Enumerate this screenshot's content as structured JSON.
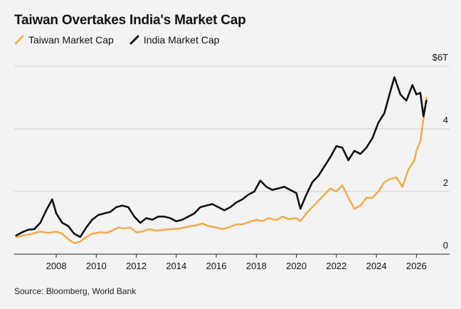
{
  "chart_data": {
    "type": "line",
    "title": "Taiwan Overtakes India's Market Cap",
    "source": "Source: Bloomberg, World Bank",
    "x_ticks": [
      "2008",
      "2010",
      "2012",
      "2014",
      "2016",
      "2018",
      "2020",
      "2022",
      "2024",
      "2026"
    ],
    "y_ticks": [
      "0",
      "2",
      "4",
      "$6T"
    ],
    "ylim": [
      0,
      6
    ],
    "xlim": [
      2005.9,
      2026.7
    ],
    "legend_position": "top-left",
    "grid": "horizontal",
    "series": [
      {
        "name": "Taiwan Market Cap",
        "color": "#f0ad4e",
        "points": [
          [
            2006.0,
            0.55
          ],
          [
            2006.4,
            0.6
          ],
          [
            2006.8,
            0.65
          ],
          [
            2007.2,
            0.72
          ],
          [
            2007.6,
            0.68
          ],
          [
            2008.0,
            0.72
          ],
          [
            2008.3,
            0.65
          ],
          [
            2008.6,
            0.48
          ],
          [
            2008.9,
            0.35
          ],
          [
            2009.2,
            0.4
          ],
          [
            2009.5,
            0.55
          ],
          [
            2009.8,
            0.65
          ],
          [
            2010.2,
            0.7
          ],
          [
            2010.5,
            0.68
          ],
          [
            2010.8,
            0.75
          ],
          [
            2011.1,
            0.85
          ],
          [
            2011.4,
            0.82
          ],
          [
            2011.7,
            0.85
          ],
          [
            2012.0,
            0.7
          ],
          [
            2012.3,
            0.72
          ],
          [
            2012.6,
            0.8
          ],
          [
            2013.0,
            0.75
          ],
          [
            2013.4,
            0.78
          ],
          [
            2013.8,
            0.8
          ],
          [
            2014.2,
            0.82
          ],
          [
            2014.6,
            0.88
          ],
          [
            2015.0,
            0.92
          ],
          [
            2015.3,
            0.98
          ],
          [
            2015.6,
            0.9
          ],
          [
            2016.0,
            0.85
          ],
          [
            2016.3,
            0.8
          ],
          [
            2016.6,
            0.85
          ],
          [
            2017.0,
            0.95
          ],
          [
            2017.3,
            0.95
          ],
          [
            2017.6,
            1.02
          ],
          [
            2018.0,
            1.1
          ],
          [
            2018.3,
            1.05
          ],
          [
            2018.6,
            1.15
          ],
          [
            2019.0,
            1.08
          ],
          [
            2019.3,
            1.2
          ],
          [
            2019.6,
            1.12
          ],
          [
            2020.0,
            1.15
          ],
          [
            2020.2,
            1.05
          ],
          [
            2020.5,
            1.3
          ],
          [
            2020.8,
            1.5
          ],
          [
            2021.1,
            1.7
          ],
          [
            2021.4,
            1.9
          ],
          [
            2021.7,
            2.1
          ],
          [
            2022.0,
            2.0
          ],
          [
            2022.3,
            2.2
          ],
          [
            2022.6,
            1.8
          ],
          [
            2022.9,
            1.45
          ],
          [
            2023.2,
            1.55
          ],
          [
            2023.5,
            1.8
          ],
          [
            2023.8,
            1.8
          ],
          [
            2024.1,
            2.0
          ],
          [
            2024.4,
            2.3
          ],
          [
            2024.7,
            2.4
          ],
          [
            2025.0,
            2.45
          ],
          [
            2025.3,
            2.15
          ],
          [
            2025.6,
            2.7
          ],
          [
            2025.9,
            3.0
          ],
          [
            2026.0,
            3.3
          ],
          [
            2026.2,
            3.6
          ],
          [
            2026.35,
            4.3
          ],
          [
            2026.5,
            5.0
          ]
        ]
      },
      {
        "name": "India Market Cap",
        "color": "#111111",
        "points": [
          [
            2006.0,
            0.6
          ],
          [
            2006.3,
            0.7
          ],
          [
            2006.6,
            0.78
          ],
          [
            2006.9,
            0.8
          ],
          [
            2007.2,
            1.0
          ],
          [
            2007.5,
            1.4
          ],
          [
            2007.8,
            1.75
          ],
          [
            2008.0,
            1.3
          ],
          [
            2008.3,
            1.0
          ],
          [
            2008.6,
            0.9
          ],
          [
            2008.9,
            0.65
          ],
          [
            2009.2,
            0.55
          ],
          [
            2009.5,
            0.85
          ],
          [
            2009.8,
            1.1
          ],
          [
            2010.1,
            1.25
          ],
          [
            2010.4,
            1.3
          ],
          [
            2010.7,
            1.35
          ],
          [
            2011.0,
            1.5
          ],
          [
            2011.3,
            1.55
          ],
          [
            2011.6,
            1.5
          ],
          [
            2011.9,
            1.2
          ],
          [
            2012.2,
            1.0
          ],
          [
            2012.5,
            1.15
          ],
          [
            2012.8,
            1.1
          ],
          [
            2013.1,
            1.2
          ],
          [
            2013.4,
            1.2
          ],
          [
            2013.7,
            1.15
          ],
          [
            2014.0,
            1.05
          ],
          [
            2014.3,
            1.1
          ],
          [
            2014.6,
            1.2
          ],
          [
            2014.9,
            1.3
          ],
          [
            2015.2,
            1.5
          ],
          [
            2015.5,
            1.55
          ],
          [
            2015.8,
            1.6
          ],
          [
            2016.1,
            1.5
          ],
          [
            2016.4,
            1.4
          ],
          [
            2016.7,
            1.5
          ],
          [
            2017.0,
            1.65
          ],
          [
            2017.3,
            1.75
          ],
          [
            2017.6,
            1.9
          ],
          [
            2017.9,
            2.0
          ],
          [
            2018.2,
            2.35
          ],
          [
            2018.5,
            2.15
          ],
          [
            2018.8,
            2.05
          ],
          [
            2019.1,
            2.1
          ],
          [
            2019.4,
            2.15
          ],
          [
            2019.7,
            2.05
          ],
          [
            2020.0,
            1.95
          ],
          [
            2020.2,
            1.45
          ],
          [
            2020.5,
            1.9
          ],
          [
            2020.8,
            2.3
          ],
          [
            2021.1,
            2.5
          ],
          [
            2021.4,
            2.8
          ],
          [
            2021.7,
            3.1
          ],
          [
            2022.0,
            3.45
          ],
          [
            2022.3,
            3.4
          ],
          [
            2022.6,
            3.0
          ],
          [
            2022.9,
            3.3
          ],
          [
            2023.2,
            3.2
          ],
          [
            2023.5,
            3.4
          ],
          [
            2023.8,
            3.7
          ],
          [
            2024.1,
            4.2
          ],
          [
            2024.4,
            4.5
          ],
          [
            2024.7,
            5.2
          ],
          [
            2024.9,
            5.65
          ],
          [
            2025.2,
            5.1
          ],
          [
            2025.5,
            4.9
          ],
          [
            2025.8,
            5.4
          ],
          [
            2026.0,
            5.1
          ],
          [
            2026.2,
            5.15
          ],
          [
            2026.35,
            4.4
          ],
          [
            2026.5,
            4.9
          ]
        ]
      }
    ]
  }
}
